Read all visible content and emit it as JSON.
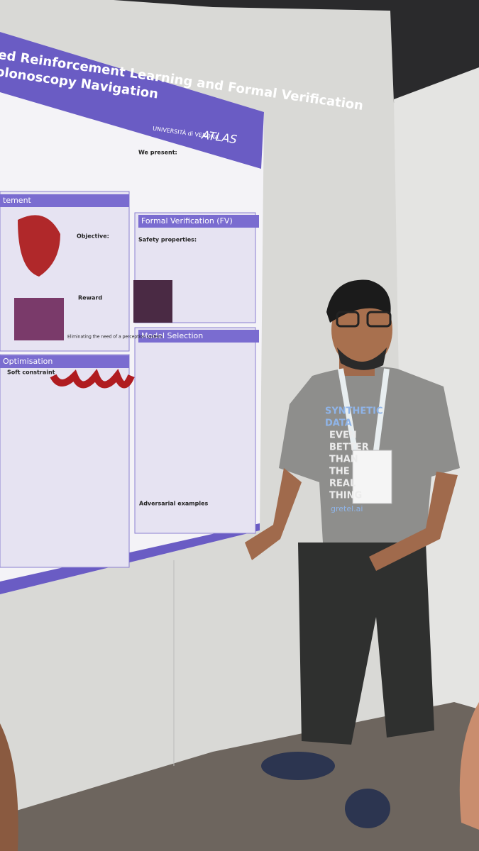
{
  "poster": {
    "title": [
      "ed Reinforcement Learning and Formal Verification",
      "olonoscopy Navigation"
    ],
    "logos": [
      "UNIVERSITÀ di VERONA",
      "ATLAS"
    ],
    "sections": [
      "tement",
      "Formal Verification (FV)",
      "Model Selection",
      "Optimisation"
    ],
    "texts": [
      "We present:",
      "Objective:",
      "Reward",
      "Safety properties:",
      "Soft constraint",
      "Adversarial examples",
      "Eliminating the need of a perception system"
    ]
  },
  "shirt": {
    "lines": [
      "SYNTHETIC",
      "DATA",
      "EVEN",
      "BETTER",
      "THAN",
      "THE",
      "REAL",
      "THING"
    ],
    "brand": "gretel.ai"
  }
}
